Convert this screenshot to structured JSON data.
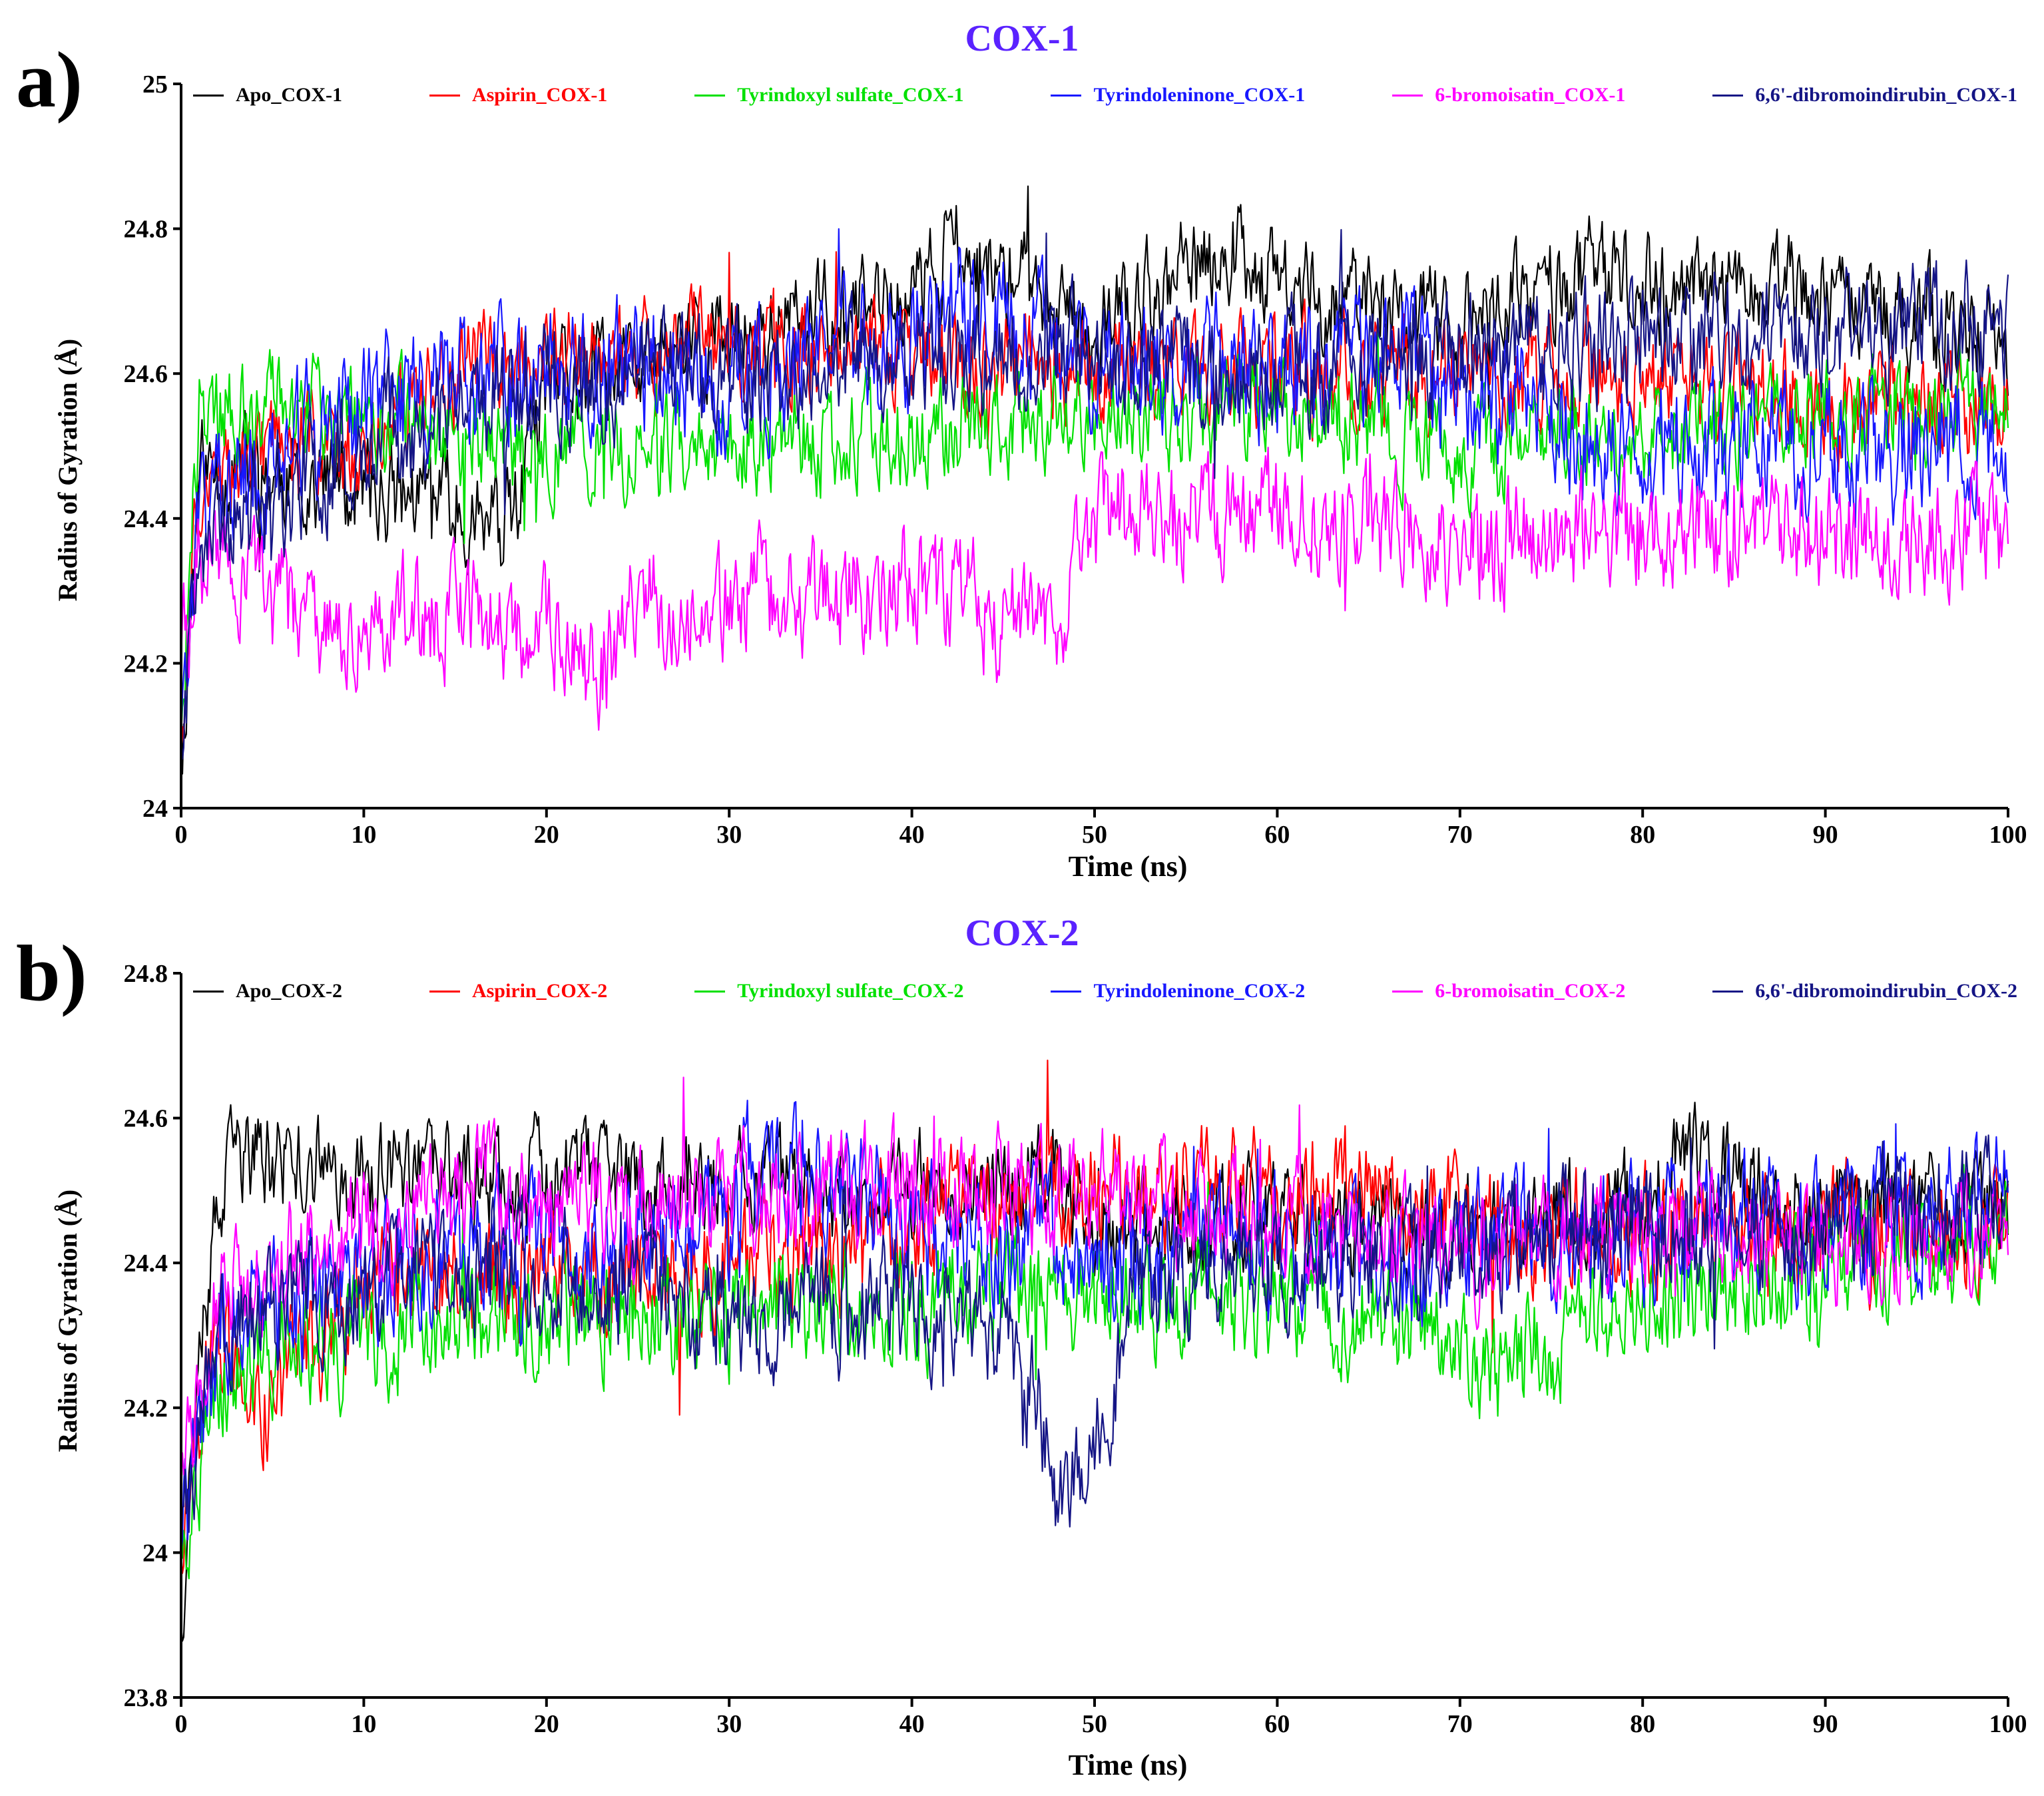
{
  "figure": {
    "panel_a_letter": "a)",
    "panel_b_letter": "b)"
  },
  "chart_data": [
    {
      "type": "line",
      "title": "COX-1",
      "xlabel": "Time (ns)",
      "ylabel": "Radius of Gyration (Å)",
      "xlim": [
        0,
        100
      ],
      "ylim": [
        24,
        25
      ],
      "xticks": [
        0,
        10,
        20,
        30,
        40,
        50,
        60,
        70,
        80,
        90,
        100
      ],
      "xtick_labels": [
        "0",
        "10",
        "20",
        "30",
        "40",
        "50",
        "60",
        "70",
        "80",
        "90",
        "100"
      ],
      "yticks": [
        24,
        24.2,
        24.4,
        24.6,
        24.8,
        25
      ],
      "ytick_labels": [
        "24",
        "24.2",
        "24.4",
        "24.6",
        "24.8",
        "25"
      ],
      "legend_placement": "top",
      "title_color": "#5a22ff",
      "series": [
        {
          "name": "Apo_COX-1",
          "color": "#000000",
          "noise": 0.07,
          "x": [
            0,
            1,
            5,
            10,
            15,
            18,
            20,
            30,
            40,
            42,
            50,
            58,
            60,
            70,
            77,
            80,
            90,
            100
          ],
          "values": [
            24.05,
            24.47,
            24.46,
            24.44,
            24.42,
            24.38,
            24.58,
            24.65,
            24.7,
            24.78,
            24.66,
            24.78,
            24.72,
            24.66,
            24.74,
            24.72,
            24.7,
            24.64
          ]
        },
        {
          "name": "Aspirin_COX-1",
          "color": "#ff0000",
          "noise": 0.07,
          "x": [
            0,
            1,
            5,
            10,
            15,
            20,
            30,
            40,
            50,
            60,
            70,
            80,
            90,
            100
          ],
          "values": [
            24.1,
            24.45,
            24.5,
            24.5,
            24.6,
            24.62,
            24.64,
            24.62,
            24.6,
            24.6,
            24.6,
            24.6,
            24.56,
            24.55
          ]
        },
        {
          "name": "Tyrindoxyl sulfate_COX-1",
          "color": "#00e000",
          "noise": 0.07,
          "x": [
            0,
            1,
            5,
            10,
            15,
            20,
            30,
            40,
            50,
            60,
            70,
            80,
            90,
            100
          ],
          "values": [
            24.1,
            24.55,
            24.56,
            24.55,
            24.5,
            24.5,
            24.5,
            24.52,
            24.55,
            24.55,
            24.5,
            24.52,
            24.55,
            24.55
          ]
        },
        {
          "name": "Tyrindoleninone_COX-1",
          "color": "#1818ff",
          "noise": 0.09,
          "x": [
            0,
            1,
            5,
            10,
            20,
            30,
            40,
            42,
            50,
            60,
            67,
            70,
            80,
            90,
            100
          ],
          "values": [
            24.1,
            24.4,
            24.48,
            24.55,
            24.6,
            24.6,
            24.64,
            24.7,
            24.62,
            24.6,
            24.62,
            24.58,
            24.5,
            24.5,
            24.5
          ]
        },
        {
          "name": "6-bromoisatin_COX-1",
          "color": "#ff00ff",
          "noise": 0.08,
          "x": [
            0,
            1,
            5,
            10,
            15,
            20,
            23,
            25,
            30,
            35,
            40,
            45,
            48,
            50,
            55,
            60,
            70,
            80,
            90,
            100
          ],
          "values": [
            24.2,
            24.35,
            24.28,
            24.26,
            24.27,
            24.24,
            24.18,
            24.28,
            24.3,
            24.28,
            24.32,
            24.26,
            24.26,
            24.4,
            24.4,
            24.42,
            24.36,
            24.38,
            24.38,
            24.38
          ]
        },
        {
          "name": "6,6'-dibromoindirubin_COX-1",
          "color": "#151585",
          "noise": 0.08,
          "x": [
            0,
            1,
            5,
            10,
            20,
            30,
            40,
            50,
            60,
            70,
            80,
            90,
            100
          ],
          "values": [
            24.1,
            24.38,
            24.42,
            24.5,
            24.58,
            24.6,
            24.62,
            24.62,
            24.6,
            24.62,
            24.65,
            24.66,
            24.66
          ]
        }
      ]
    },
    {
      "type": "line",
      "title": "COX-2",
      "xlabel": "Time (ns)",
      "ylabel": "Radius of Gyration (Å)",
      "xlim": [
        0,
        100
      ],
      "ylim": [
        23.8,
        24.8
      ],
      "xticks": [
        0,
        10,
        20,
        30,
        40,
        50,
        60,
        70,
        80,
        90,
        100
      ],
      "xtick_labels": [
        "0",
        "10",
        "20",
        "30",
        "40",
        "50",
        "60",
        "70",
        "80",
        "90",
        "100"
      ],
      "yticks": [
        23.8,
        24,
        24.2,
        24.4,
        24.6,
        24.8
      ],
      "ytick_labels": [
        "23.8",
        "24",
        "24.2",
        "24.4",
        "24.6",
        "24.8"
      ],
      "legend_placement": "top",
      "title_color": "#5a22ff",
      "series": [
        {
          "name": "Apo_COX-2",
          "color": "#000000",
          "noise": 0.07,
          "x": [
            0,
            1,
            3,
            10,
            20,
            30,
            40,
            48,
            50,
            60,
            70,
            80,
            82,
            90,
            100
          ],
          "values": [
            23.9,
            24.35,
            24.55,
            24.52,
            24.52,
            24.5,
            24.5,
            24.52,
            24.46,
            24.46,
            24.45,
            24.48,
            24.55,
            24.48,
            24.48
          ]
        },
        {
          "name": "Aspirin_COX-2",
          "color": "#ff0000",
          "noise": 0.08,
          "x": [
            0,
            2,
            4,
            10,
            20,
            30,
            40,
            50,
            60,
            64,
            70,
            80,
            90,
            100
          ],
          "values": [
            24.0,
            24.3,
            24.2,
            24.35,
            24.4,
            24.4,
            24.45,
            24.5,
            24.5,
            24.5,
            24.45,
            24.45,
            24.45,
            24.45
          ]
        },
        {
          "name": "Tyrindoxyl sulfate_COX-2",
          "color": "#00e000",
          "noise": 0.08,
          "x": [
            0,
            2,
            10,
            20,
            30,
            40,
            50,
            60,
            70,
            72,
            80,
            90,
            100
          ],
          "values": [
            24.0,
            24.25,
            24.3,
            24.33,
            24.33,
            24.35,
            24.35,
            24.35,
            24.32,
            24.25,
            24.35,
            24.38,
            24.45
          ]
        },
        {
          "name": "Tyrindoleninone_COX-2",
          "color": "#1818ff",
          "noise": 0.09,
          "x": [
            0,
            2,
            10,
            20,
            30,
            31,
            40,
            50,
            60,
            70,
            80,
            90,
            100
          ],
          "values": [
            24.0,
            24.3,
            24.4,
            24.4,
            24.45,
            24.55,
            24.45,
            24.4,
            24.42,
            24.42,
            24.45,
            24.45,
            24.48
          ]
        },
        {
          "name": "6-bromoisatin_COX-2",
          "color": "#ff00ff",
          "noise": 0.08,
          "x": [
            0,
            2,
            10,
            15,
            20,
            30,
            40,
            50,
            60,
            70,
            80,
            90,
            100
          ],
          "values": [
            24.1,
            24.35,
            24.45,
            24.5,
            24.48,
            24.48,
            24.5,
            24.5,
            24.45,
            24.42,
            24.45,
            24.42,
            24.45
          ]
        },
        {
          "name": "6,6'-dibromoindirubin_COX-2",
          "color": "#151585",
          "noise": 0.08,
          "x": [
            0,
            2,
            10,
            20,
            30,
            40,
            45,
            47,
            48,
            49,
            50,
            52,
            60,
            70,
            80,
            90,
            100
          ],
          "values": [
            24.0,
            24.3,
            24.38,
            24.38,
            24.32,
            24.35,
            24.3,
            24.2,
            24.06,
            24.1,
            24.12,
            24.35,
            24.4,
            24.42,
            24.45,
            24.45,
            24.5
          ]
        }
      ]
    }
  ]
}
